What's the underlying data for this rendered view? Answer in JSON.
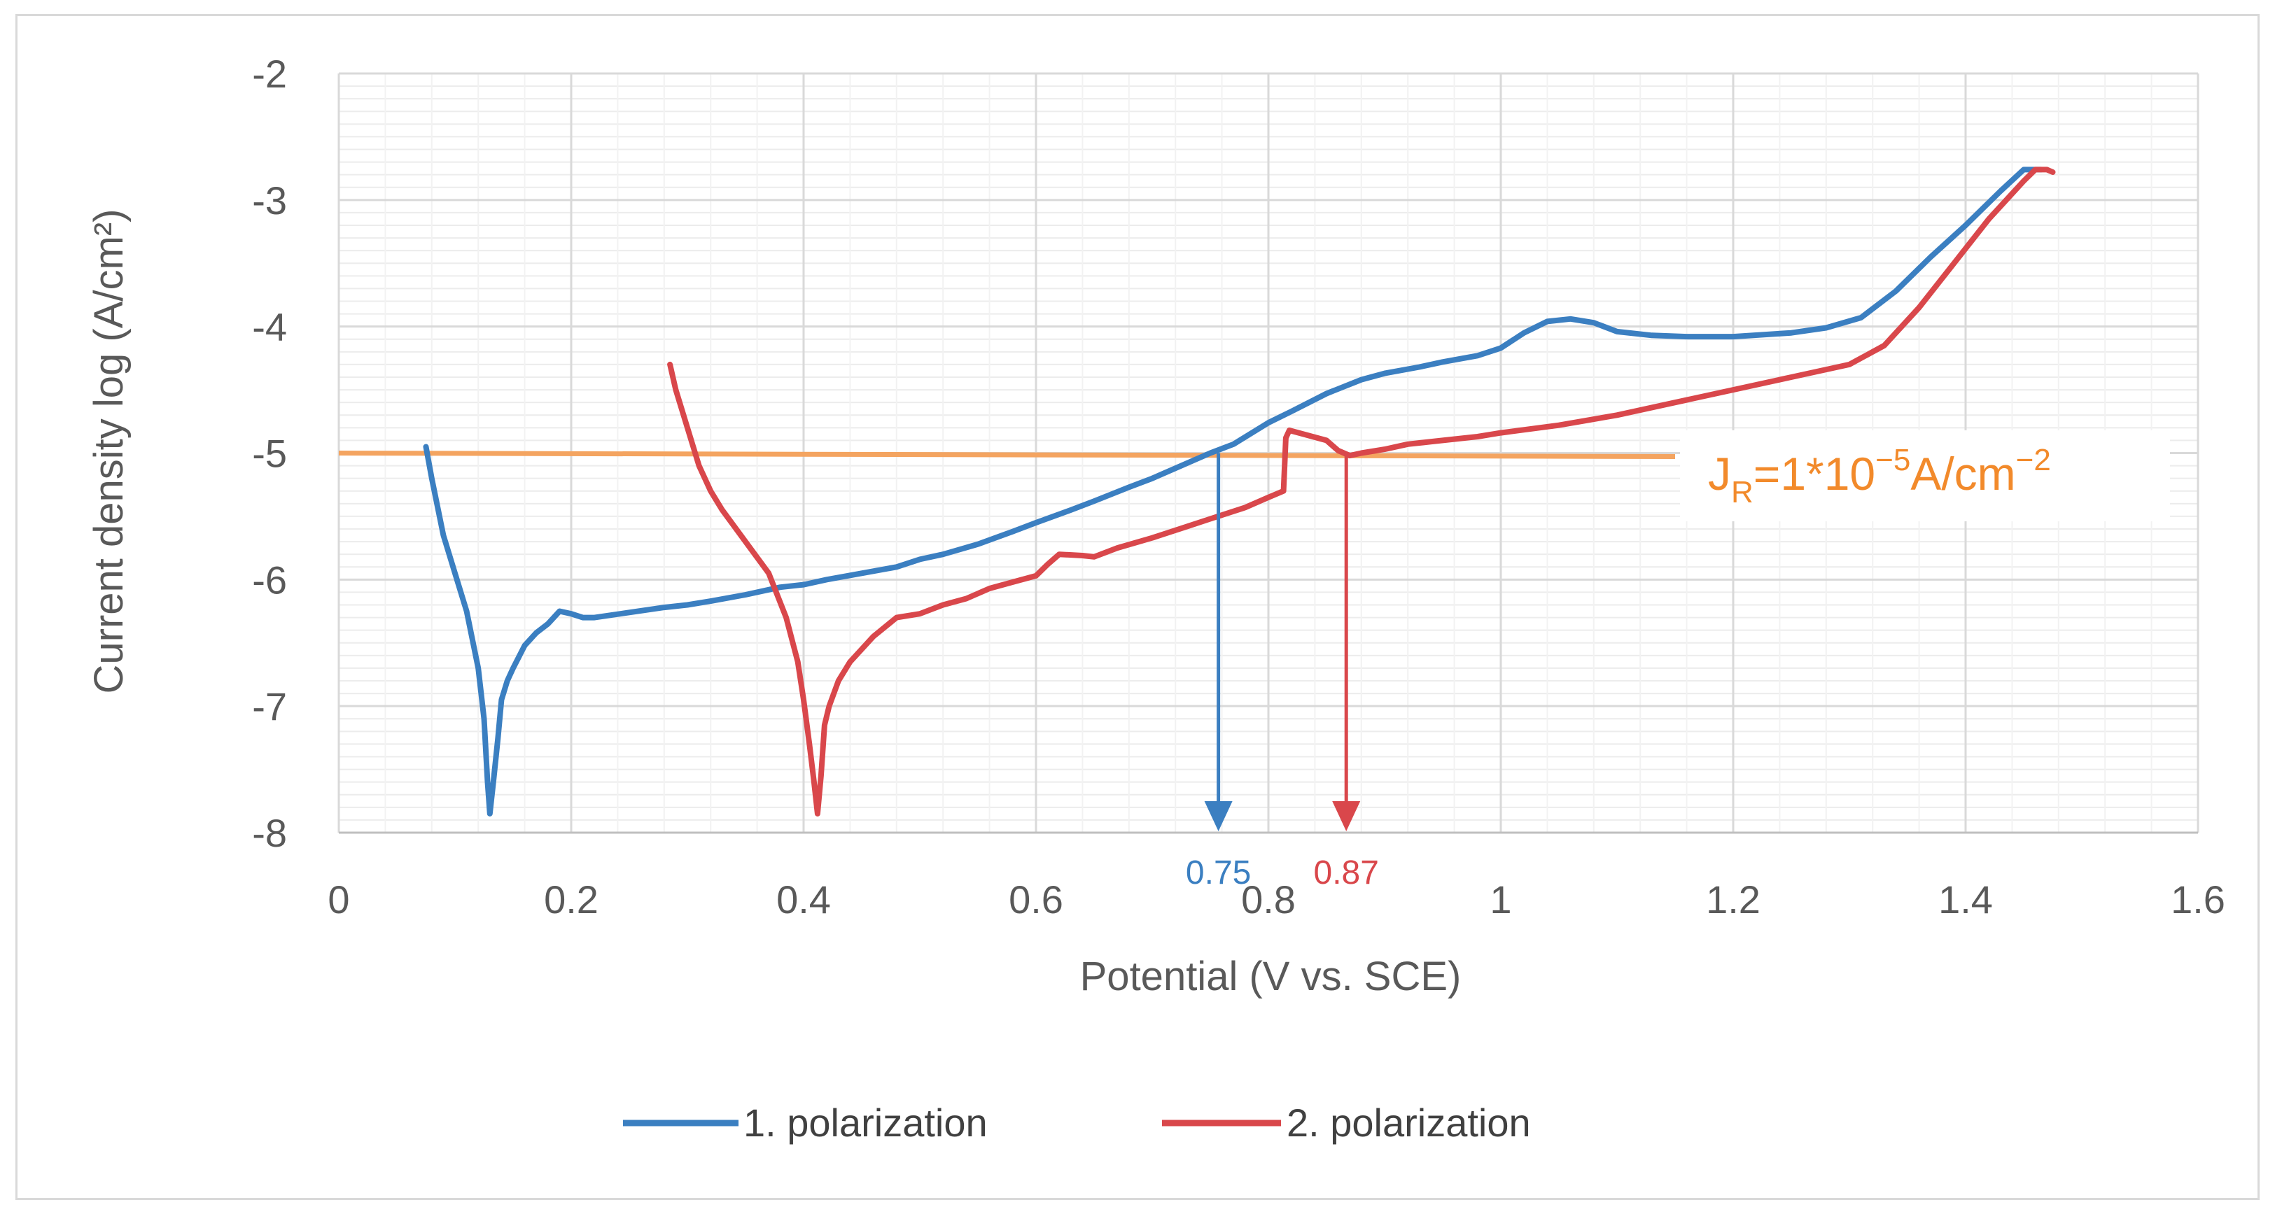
{
  "chart_data": {
    "type": "line",
    "title": "",
    "xlabel": "Potential (V vs. SCE)",
    "ylabel": "Current density  log (A/cm²)",
    "xlim": [
      0,
      1.6
    ],
    "ylim": [
      -8,
      -2
    ],
    "x_ticks": [
      0,
      0.2,
      0.4,
      0.6,
      0.8,
      1,
      1.2,
      1.4,
      1.6
    ],
    "x_tick_labels": [
      "0",
      "0.2",
      "0.4",
      "0.6",
      "0.8",
      "1",
      "1.2",
      "1.4",
      "1.6"
    ],
    "y_ticks": [
      -2,
      -3,
      -4,
      -5,
      -6,
      -7,
      -8
    ],
    "y_tick_labels": [
      "-2",
      "-3",
      "-4",
      "-5",
      "-6",
      "-7",
      "-8"
    ],
    "grid": true,
    "legend_position": "bottom",
    "series": [
      {
        "name": "1. polarization",
        "color": "#3b7fc1",
        "points": [
          [
            0.075,
            -4.95
          ],
          [
            0.08,
            -5.2
          ],
          [
            0.09,
            -5.65
          ],
          [
            0.1,
            -5.95
          ],
          [
            0.11,
            -6.25
          ],
          [
            0.12,
            -6.7
          ],
          [
            0.125,
            -7.1
          ],
          [
            0.128,
            -7.6
          ],
          [
            0.13,
            -7.85
          ],
          [
            0.133,
            -7.6
          ],
          [
            0.137,
            -7.25
          ],
          [
            0.14,
            -6.95
          ],
          [
            0.145,
            -6.8
          ],
          [
            0.15,
            -6.7
          ],
          [
            0.16,
            -6.52
          ],
          [
            0.17,
            -6.42
          ],
          [
            0.18,
            -6.35
          ],
          [
            0.19,
            -6.25
          ],
          [
            0.2,
            -6.27
          ],
          [
            0.21,
            -6.3
          ],
          [
            0.22,
            -6.3
          ],
          [
            0.25,
            -6.26
          ],
          [
            0.28,
            -6.22
          ],
          [
            0.3,
            -6.2
          ],
          [
            0.32,
            -6.17
          ],
          [
            0.35,
            -6.12
          ],
          [
            0.38,
            -6.06
          ],
          [
            0.4,
            -6.04
          ],
          [
            0.42,
            -6.0
          ],
          [
            0.45,
            -5.95
          ],
          [
            0.48,
            -5.9
          ],
          [
            0.5,
            -5.84
          ],
          [
            0.52,
            -5.8
          ],
          [
            0.55,
            -5.72
          ],
          [
            0.58,
            -5.62
          ],
          [
            0.6,
            -5.55
          ],
          [
            0.63,
            -5.45
          ],
          [
            0.65,
            -5.38
          ],
          [
            0.68,
            -5.27
          ],
          [
            0.7,
            -5.2
          ],
          [
            0.72,
            -5.12
          ],
          [
            0.75,
            -5.0
          ],
          [
            0.77,
            -4.93
          ],
          [
            0.8,
            -4.76
          ],
          [
            0.82,
            -4.67
          ],
          [
            0.85,
            -4.53
          ],
          [
            0.88,
            -4.42
          ],
          [
            0.9,
            -4.37
          ],
          [
            0.93,
            -4.32
          ],
          [
            0.95,
            -4.28
          ],
          [
            0.98,
            -4.23
          ],
          [
            1.0,
            -4.17
          ],
          [
            1.02,
            -4.05
          ],
          [
            1.04,
            -3.96
          ],
          [
            1.06,
            -3.94
          ],
          [
            1.08,
            -3.97
          ],
          [
            1.1,
            -4.04
          ],
          [
            1.13,
            -4.07
          ],
          [
            1.16,
            -4.08
          ],
          [
            1.2,
            -4.08
          ],
          [
            1.25,
            -4.05
          ],
          [
            1.28,
            -4.01
          ],
          [
            1.31,
            -3.93
          ],
          [
            1.34,
            -3.72
          ],
          [
            1.37,
            -3.45
          ],
          [
            1.4,
            -3.2
          ],
          [
            1.43,
            -2.93
          ],
          [
            1.45,
            -2.76
          ],
          [
            1.465,
            -2.76
          ]
        ]
      },
      {
        "name": "2. polarization",
        "color": "#d9474b",
        "points": [
          [
            0.285,
            -4.3
          ],
          [
            0.29,
            -4.5
          ],
          [
            0.3,
            -4.8
          ],
          [
            0.31,
            -5.1
          ],
          [
            0.32,
            -5.3
          ],
          [
            0.33,
            -5.45
          ],
          [
            0.35,
            -5.7
          ],
          [
            0.37,
            -5.95
          ],
          [
            0.385,
            -6.3
          ],
          [
            0.395,
            -6.65
          ],
          [
            0.4,
            -6.95
          ],
          [
            0.405,
            -7.3
          ],
          [
            0.409,
            -7.6
          ],
          [
            0.412,
            -7.85
          ],
          [
            0.415,
            -7.55
          ],
          [
            0.418,
            -7.15
          ],
          [
            0.422,
            -7.0
          ],
          [
            0.43,
            -6.8
          ],
          [
            0.44,
            -6.65
          ],
          [
            0.45,
            -6.55
          ],
          [
            0.46,
            -6.45
          ],
          [
            0.48,
            -6.3
          ],
          [
            0.5,
            -6.27
          ],
          [
            0.52,
            -6.2
          ],
          [
            0.54,
            -6.15
          ],
          [
            0.56,
            -6.07
          ],
          [
            0.58,
            -6.02
          ],
          [
            0.6,
            -5.97
          ],
          [
            0.61,
            -5.88
          ],
          [
            0.62,
            -5.8
          ],
          [
            0.64,
            -5.81
          ],
          [
            0.65,
            -5.82
          ],
          [
            0.67,
            -5.75
          ],
          [
            0.7,
            -5.67
          ],
          [
            0.73,
            -5.58
          ],
          [
            0.75,
            -5.52
          ],
          [
            0.78,
            -5.43
          ],
          [
            0.8,
            -5.35
          ],
          [
            0.813,
            -5.3
          ],
          [
            0.815,
            -4.88
          ],
          [
            0.818,
            -4.82
          ],
          [
            0.83,
            -4.85
          ],
          [
            0.85,
            -4.9
          ],
          [
            0.86,
            -4.98
          ],
          [
            0.87,
            -5.02
          ],
          [
            0.88,
            -5.0
          ],
          [
            0.9,
            -4.97
          ],
          [
            0.92,
            -4.93
          ],
          [
            0.95,
            -4.9
          ],
          [
            0.98,
            -4.87
          ],
          [
            1.0,
            -4.84
          ],
          [
            1.05,
            -4.78
          ],
          [
            1.1,
            -4.7
          ],
          [
            1.15,
            -4.6
          ],
          [
            1.2,
            -4.5
          ],
          [
            1.25,
            -4.4
          ],
          [
            1.3,
            -4.3
          ],
          [
            1.33,
            -4.15
          ],
          [
            1.36,
            -3.85
          ],
          [
            1.39,
            -3.5
          ],
          [
            1.42,
            -3.15
          ],
          [
            1.45,
            -2.85
          ],
          [
            1.46,
            -2.76
          ],
          [
            1.47,
            -2.76
          ],
          [
            1.475,
            -2.78
          ]
        ]
      }
    ],
    "reference_line": {
      "y": -5,
      "x_range": [
        0,
        1.15
      ],
      "color": "#f4a460",
      "label": "J",
      "label_subscript": "R",
      "label_mid": "=1*10",
      "label_superscript": "−5",
      "label_unit": "A/cm",
      "label_unit_superscript": "−2",
      "label_color": "#f28a2b"
    },
    "annotations": [
      {
        "x": 0.757,
        "from_y": -5.0,
        "to_y": -8,
        "label": "0.75",
        "color": "#3b7fc1"
      },
      {
        "x": 0.867,
        "from_y": -5.0,
        "to_y": -8,
        "label": "0.87",
        "color": "#d9474b"
      }
    ]
  }
}
